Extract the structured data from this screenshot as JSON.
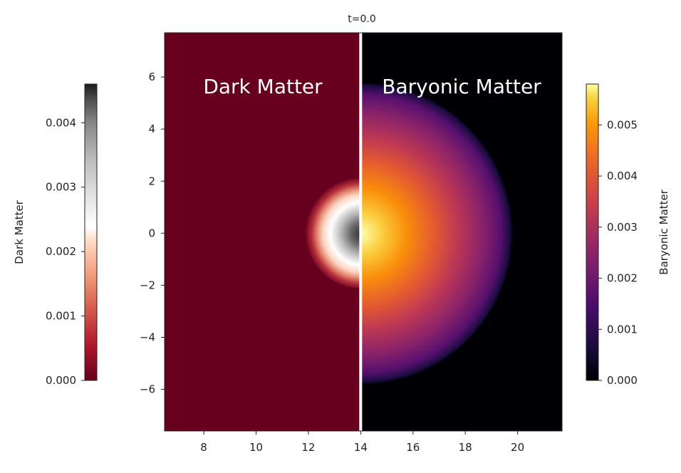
{
  "chart_data": {
    "type": "heatmap",
    "title": "t=0.0",
    "xlabel": "",
    "ylabel": "",
    "xlim": [
      6.5,
      21.7
    ],
    "ylim": [
      -7.6,
      7.7
    ],
    "xticks": [
      8,
      10,
      12,
      14,
      16,
      18,
      20
    ],
    "yticks": [
      6,
      4,
      2,
      0,
      -2,
      -4,
      -6
    ],
    "xtick_labels": [
      "8",
      "10",
      "12",
      "14",
      "16",
      "18",
      "20"
    ],
    "ytick_labels": [
      "6",
      "4",
      "2",
      "0",
      "−2",
      "−4",
      "−6"
    ],
    "divider_x": 14,
    "panels": [
      {
        "name": "Dark Matter",
        "side": "left",
        "center": [
          14,
          0
        ],
        "radius": 2.1,
        "peak": 0.0045,
        "colormap": "RdGy"
      },
      {
        "name": "Baryonic Matter",
        "side": "right",
        "center": [
          14,
          0
        ],
        "radius": 5.8,
        "peak": 0.0057,
        "colormap": "inferno"
      }
    ],
    "colorbars": [
      {
        "label": "Dark Matter",
        "side": "left",
        "range": [
          0,
          0.0046
        ],
        "ticks": [
          0.0,
          0.001,
          0.002,
          0.003,
          0.004
        ],
        "tick_labels": [
          "0.000",
          "0.001",
          "0.002",
          "0.003",
          "0.004"
        ]
      },
      {
        "label": "Baryonic Matter",
        "side": "right",
        "range": [
          0,
          0.0058
        ],
        "ticks": [
          0.0,
          0.001,
          0.002,
          0.003,
          0.004,
          0.005
        ],
        "tick_labels": [
          "0.000",
          "0.001",
          "0.002",
          "0.003",
          "0.004",
          "0.005"
        ]
      }
    ]
  },
  "colors": {
    "dm_background": "#67001f",
    "divider": "#ffffff",
    "baryon_background": "#000004"
  }
}
